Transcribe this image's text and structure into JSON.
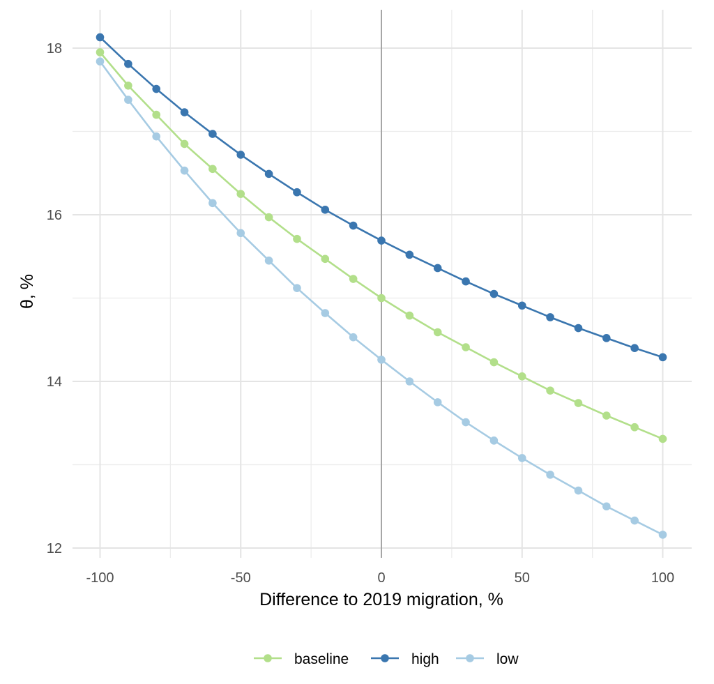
{
  "chart_data": {
    "type": "line",
    "xlabel": "Difference to 2019 migration, %",
    "ylabel": "θ, %",
    "xlim": [
      -105,
      105
    ],
    "ylim": [
      11.9,
      18.5
    ],
    "x_ticks": [
      -100,
      -50,
      0,
      50,
      100
    ],
    "x_tick_labels": [
      "-100",
      "-50",
      "0",
      "50",
      "100"
    ],
    "y_ticks": [
      12,
      14,
      16,
      18
    ],
    "y_tick_labels": [
      "12",
      "14",
      "16",
      "18"
    ],
    "grid": true,
    "reference_line_x": 0,
    "legend_position": "bottom",
    "x": [
      -100,
      -90,
      -80,
      -70,
      -60,
      -50,
      -40,
      -30,
      -20,
      -10,
      0,
      10,
      20,
      30,
      40,
      50,
      60,
      70,
      80,
      90,
      100
    ],
    "series": [
      {
        "name": "baseline",
        "color": "#b2df8a",
        "values": [
          17.95,
          17.55,
          17.2,
          16.85,
          16.55,
          16.25,
          15.97,
          15.71,
          15.47,
          15.23,
          15.0,
          14.79,
          14.59,
          14.41,
          14.23,
          14.06,
          13.89,
          13.74,
          13.59,
          13.45,
          13.31
        ]
      },
      {
        "name": "high",
        "color": "#3a76af",
        "values": [
          18.13,
          17.81,
          17.51,
          17.23,
          16.97,
          16.72,
          16.49,
          16.27,
          16.06,
          15.87,
          15.69,
          15.52,
          15.36,
          15.2,
          15.05,
          14.91,
          14.77,
          14.64,
          14.52,
          14.4,
          14.29
        ]
      },
      {
        "name": "low",
        "color": "#a6cbe3",
        "values": [
          17.84,
          17.38,
          16.94,
          16.53,
          16.14,
          15.78,
          15.45,
          15.12,
          14.82,
          14.53,
          14.26,
          14.0,
          13.75,
          13.51,
          13.29,
          13.08,
          12.88,
          12.69,
          12.5,
          12.33,
          12.16
        ]
      }
    ]
  }
}
